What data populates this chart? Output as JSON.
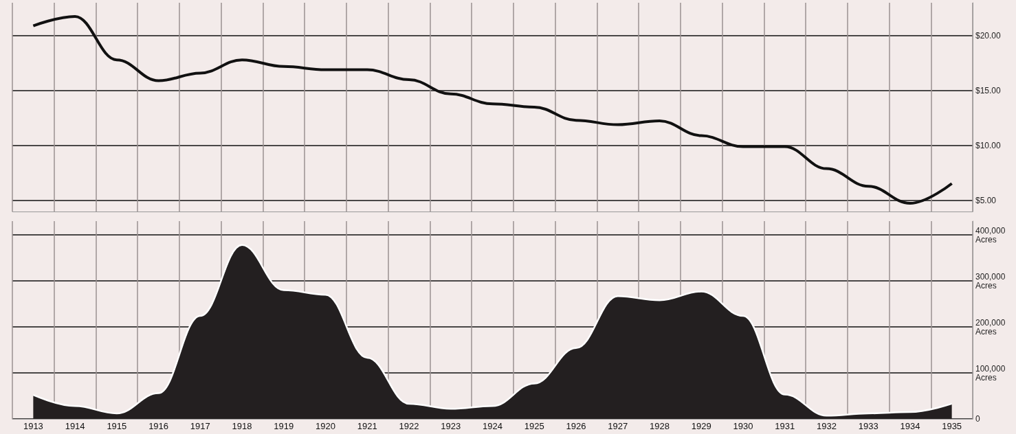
{
  "chart_data": [
    {
      "type": "line",
      "categories": [
        "1913",
        "1914",
        "1915",
        "1916",
        "1917",
        "1918",
        "1919",
        "1920",
        "1921",
        "1922",
        "1923",
        "1924",
        "1925",
        "1926",
        "1927",
        "1928",
        "1929",
        "1930",
        "1931",
        "1932",
        "1933",
        "1934",
        "1935"
      ],
      "series": [
        {
          "color": "#111111",
          "values": [
            20.9,
            21.75,
            17.8,
            15.9,
            16.6,
            17.8,
            17.2,
            16.9,
            16.9,
            16.0,
            14.7,
            13.8,
            13.5,
            12.3,
            11.9,
            12.25,
            10.9,
            9.9,
            9.9,
            7.9,
            6.3,
            4.75,
            6.55
          ]
        }
      ],
      "ylim": [
        4,
        23
      ],
      "yticks": [
        {
          "value": 5,
          "label": "$5.00"
        },
        {
          "value": 10,
          "label": "$10.00"
        },
        {
          "value": 15,
          "label": "$15.00"
        },
        {
          "value": 20,
          "label": "$20.00"
        }
      ],
      "grid": true,
      "tick_labels": "y",
      "marker": "none"
    },
    {
      "type": "area",
      "categories": [
        "1913",
        "1914",
        "1915",
        "1916",
        "1917",
        "1918",
        "1919",
        "1920",
        "1921",
        "1922",
        "1923",
        "1924",
        "1925",
        "1926",
        "1927",
        "1928",
        "1929",
        "1930",
        "1931",
        "1932",
        "1933",
        "1934",
        "1935"
      ],
      "series": [
        {
          "color": "#231f20",
          "values": [
            52000,
            28000,
            12000,
            56000,
            224000,
            378000,
            280000,
            270000,
            133000,
            33000,
            22000,
            28000,
            77000,
            154000,
            267000,
            258000,
            277000,
            224000,
            53000,
            7000,
            12000,
            15000,
            33000
          ]
        }
      ],
      "ylim": [
        0,
        430000
      ],
      "yticks": [
        0,
        {
          "value": 100000,
          "label": "100,000 Acres"
        },
        {
          "value": 200000,
          "label": "200,000 Acres"
        },
        {
          "value": 300000,
          "label": "300,000 Acres"
        },
        {
          "value": 400000,
          "label": "400,000 Acres"
        }
      ],
      "grid": true,
      "marker": "none"
    }
  ]
}
